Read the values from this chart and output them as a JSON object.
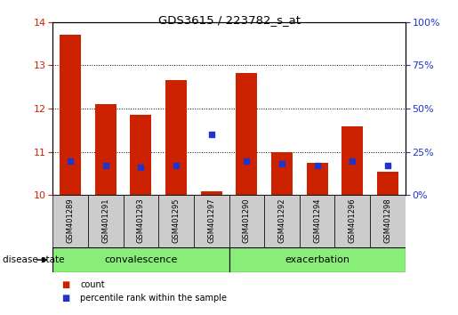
{
  "title": "GDS3615 / 223782_s_at",
  "samples": [
    "GSM401289",
    "GSM401291",
    "GSM401293",
    "GSM401295",
    "GSM401297",
    "GSM401290",
    "GSM401292",
    "GSM401294",
    "GSM401296",
    "GSM401298"
  ],
  "count_values": [
    13.7,
    12.1,
    11.85,
    12.65,
    10.1,
    12.82,
    11.0,
    10.75,
    11.6,
    10.55
  ],
  "percentile_values": [
    20,
    17,
    16,
    17,
    35,
    20,
    18,
    17,
    20,
    17
  ],
  "ylim_left": [
    10,
    14
  ],
  "ylim_right": [
    0,
    100
  ],
  "yticks_left": [
    10,
    11,
    12,
    13,
    14
  ],
  "yticks_right": [
    0,
    25,
    50,
    75,
    100
  ],
  "groups": [
    {
      "label": "convalescence",
      "start": 0,
      "end": 5
    },
    {
      "label": "exacerbation",
      "start": 5,
      "end": 10
    }
  ],
  "bar_color_red": "#cc2200",
  "bar_color_blue": "#2233cc",
  "bar_width": 0.6,
  "grid_color": "#000000",
  "tick_label_color_left": "#cc2200",
  "tick_label_color_right": "#2233cc",
  "group_bg_color": "#88ee77",
  "sample_bg_color": "#cccccc",
  "legend_items": [
    "count",
    "percentile rank within the sample"
  ],
  "disease_state_label": "disease state"
}
